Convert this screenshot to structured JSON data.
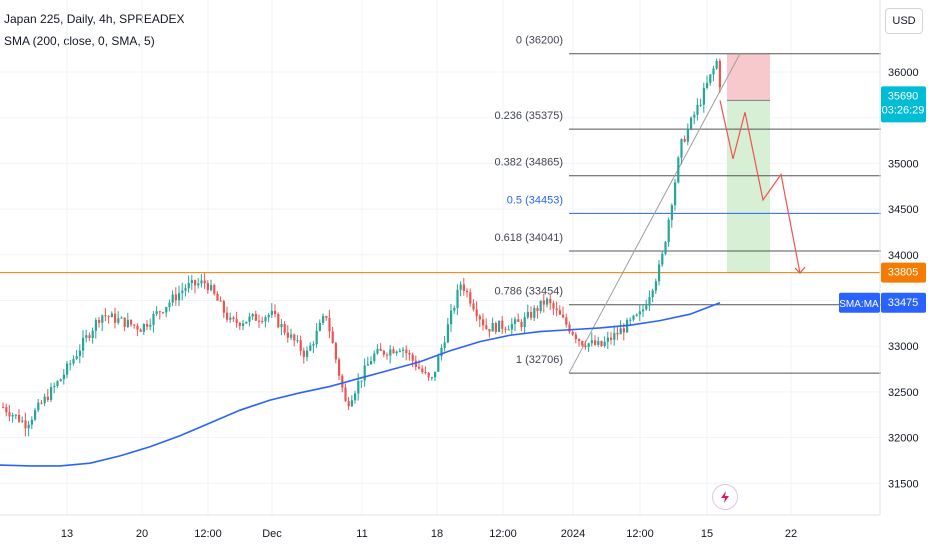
{
  "header": {
    "symbol_line": "Japan 225, Daily, 4h, SPREADEX",
    "indicator_line": "SMA (200, close, 0, SMA, 5)"
  },
  "currency_button": "USD",
  "chart_data": {
    "type": "candlestick",
    "y_axis": {
      "ticks": [
        "36000",
        "35500",
        "35000",
        "34500",
        "34000",
        "33500",
        "33000",
        "32500",
        "32000",
        "31500"
      ],
      "ylim": [
        31300,
        36550
      ]
    },
    "x_axis": {
      "ticks": [
        "13",
        "20",
        "12:00",
        "Dec",
        "11",
        "18",
        "12:00",
        "2024",
        "12:00",
        "15",
        "22"
      ]
    },
    "grid": true,
    "fibonacci": [
      {
        "label": "0 (36200)",
        "value": 36200
      },
      {
        "label": "0.236 (35375)",
        "value": 35375
      },
      {
        "label": "0.382 (34865)",
        "value": 34865
      },
      {
        "label": "0.5 (34453)",
        "value": 34453
      },
      {
        "label": "0.618 (34041)",
        "value": 34041
      },
      {
        "label": "0.786 (33454)",
        "value": 33454
      },
      {
        "label": "1 (32706)",
        "value": 32706
      }
    ],
    "horizontal_line": {
      "value": 33805,
      "label": "33805",
      "color": "#f57c00"
    },
    "price_label": {
      "value": 35690,
      "price": "35690",
      "countdown": "03:26:29",
      "color": "#00bcd4"
    },
    "sma_label": {
      "name": "SMA:MA",
      "value": 33475,
      "price": "33475",
      "color": "#2962ff"
    },
    "position": {
      "entry": 35690,
      "stop": 36200,
      "target": 33805
    },
    "sma_path": [
      [
        0,
        31700
      ],
      [
        30,
        31690
      ],
      [
        60,
        31690
      ],
      [
        90,
        31720
      ],
      [
        120,
        31800
      ],
      [
        150,
        31900
      ],
      [
        180,
        32020
      ],
      [
        210,
        32160
      ],
      [
        240,
        32300
      ],
      [
        270,
        32410
      ],
      [
        300,
        32490
      ],
      [
        330,
        32560
      ],
      [
        360,
        32650
      ],
      [
        390,
        32740
      ],
      [
        420,
        32830
      ],
      [
        450,
        32950
      ],
      [
        480,
        33050
      ],
      [
        510,
        33120
      ],
      [
        540,
        33160
      ],
      [
        570,
        33180
      ],
      [
        600,
        33200
      ],
      [
        630,
        33230
      ],
      [
        660,
        33280
      ],
      [
        690,
        33350
      ],
      [
        720,
        33475
      ]
    ],
    "candle_colors": {
      "up": "#26a69a",
      "down": "#ef5350"
    }
  }
}
